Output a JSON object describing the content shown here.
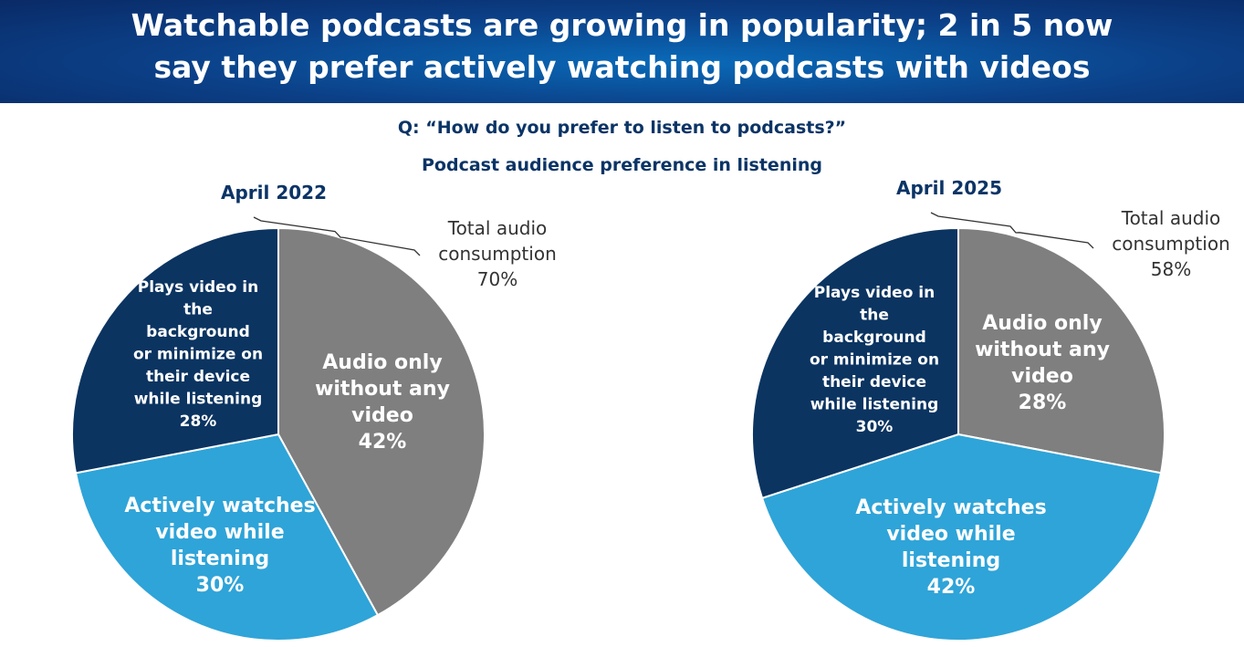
{
  "header": {
    "title_line1": "Watchable podcasts are growing in popularity; 2 in 5 now",
    "title_line2": "say they prefer actively watching podcasts with videos"
  },
  "question": "Q: “How do you prefer to listen to podcasts?”",
  "subtitle": "Podcast audience preference in listening",
  "chart_data": [
    {
      "type": "pie",
      "title": "April 2022",
      "slices": [
        {
          "label": "Audio only without any video",
          "value": 42,
          "color": "#7f7f7f"
        },
        {
          "label": "Actively watches video while listening",
          "value": 30,
          "color": "#2fa4d8"
        },
        {
          "label": "Plays video in the background or minimize on their device while listening",
          "value": 28,
          "color": "#0b3461"
        }
      ],
      "annotation": {
        "label": "Total audio consumption",
        "value": "70%"
      }
    },
    {
      "type": "pie",
      "title": "April 2025",
      "slices": [
        {
          "label": "Audio only without any video",
          "value": 28,
          "color": "#7f7f7f"
        },
        {
          "label": "Actively watches video while listening",
          "value": 42,
          "color": "#2fa4d8"
        },
        {
          "label": "Plays video in the background or minimize on their device while listening",
          "value": 30,
          "color": "#0b3461"
        }
      ],
      "annotation": {
        "label": "Total audio consumption",
        "value": "58%"
      }
    }
  ]
}
